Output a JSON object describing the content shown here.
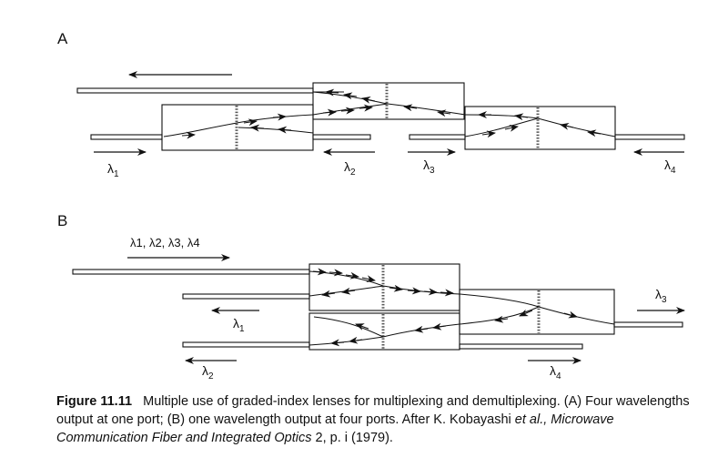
{
  "panels": {
    "a": {
      "label": "A",
      "lambda1": "λ1",
      "lambda2": "λ2",
      "lambda3": "λ3",
      "lambda4": "λ4"
    },
    "b": {
      "label": "B",
      "input": "λ1, λ2, λ3, λ4",
      "lambda1": "λ1",
      "lambda2": "λ2",
      "lambda3": "λ3",
      "lambda4": "λ4"
    }
  },
  "caption": {
    "number": "Figure 11.11",
    "text_1": "Multiple use of graded-index lenses for multiplexing and demultiplexing. (A) Four wavelengths output at one port; (B) one wavelength output at four ports. After K. Kobayashi ",
    "italic_1": "et al., Microwave Communication Fiber and Integrated Optics",
    "text_2": " 2, p. i (1979)."
  }
}
